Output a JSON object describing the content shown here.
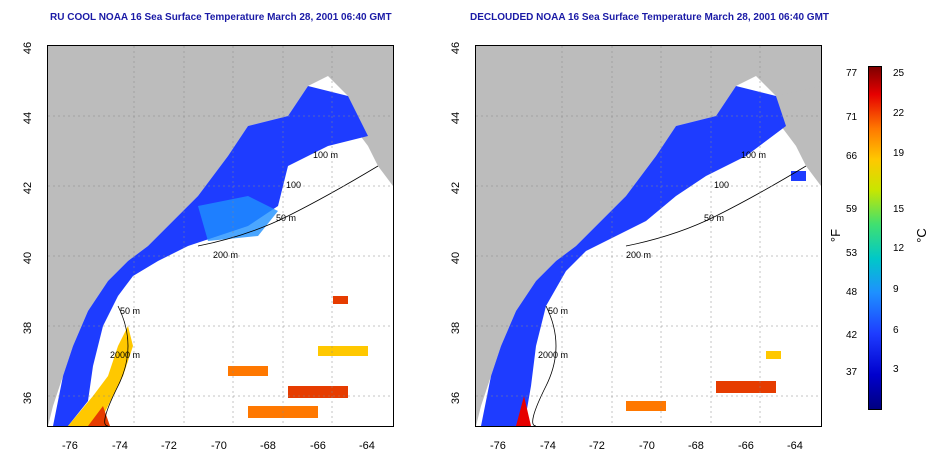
{
  "titles": {
    "left": "RU COOL NOAA 16 Sea Surface Temperature March 28, 2001 06:40 GMT",
    "right": "DECLOUDED NOAA 16 Sea Surface Temperature March 28, 2001 06:40 GMT"
  },
  "axes": {
    "lat_ticks": [
      "46",
      "44",
      "42",
      "40",
      "38",
      "36"
    ],
    "lon_ticks": [
      "-76",
      "-74",
      "-72",
      "-70",
      "-68",
      "-66",
      "-64"
    ]
  },
  "contour_labels": {
    "left": [
      "100 m",
      "100",
      "50 m",
      "200 m",
      "50 m",
      "2000 m"
    ],
    "right": [
      "100 m",
      "100",
      "50 m",
      "200 m",
      "50 m",
      "2000 m"
    ]
  },
  "colorbar": {
    "f_ticks": [
      "77",
      "71",
      "66",
      "59",
      "53",
      "48",
      "42",
      "37"
    ],
    "c_ticks": [
      "25",
      "22",
      "19",
      "15",
      "12",
      "9",
      "6",
      "3"
    ],
    "f_unit": "°F",
    "c_unit": "°C",
    "colors": [
      "#000080",
      "#0000cd",
      "#1e3cff",
      "#1e90ff",
      "#00c8c8",
      "#40e070",
      "#c8e600",
      "#ffc800",
      "#ff7800",
      "#e60000",
      "#7f0000"
    ]
  },
  "map_colors": {
    "land": "#bcbcbc",
    "cloud": "#ffffff",
    "cold": "#1e3cff",
    "warm": "#e63c00"
  }
}
